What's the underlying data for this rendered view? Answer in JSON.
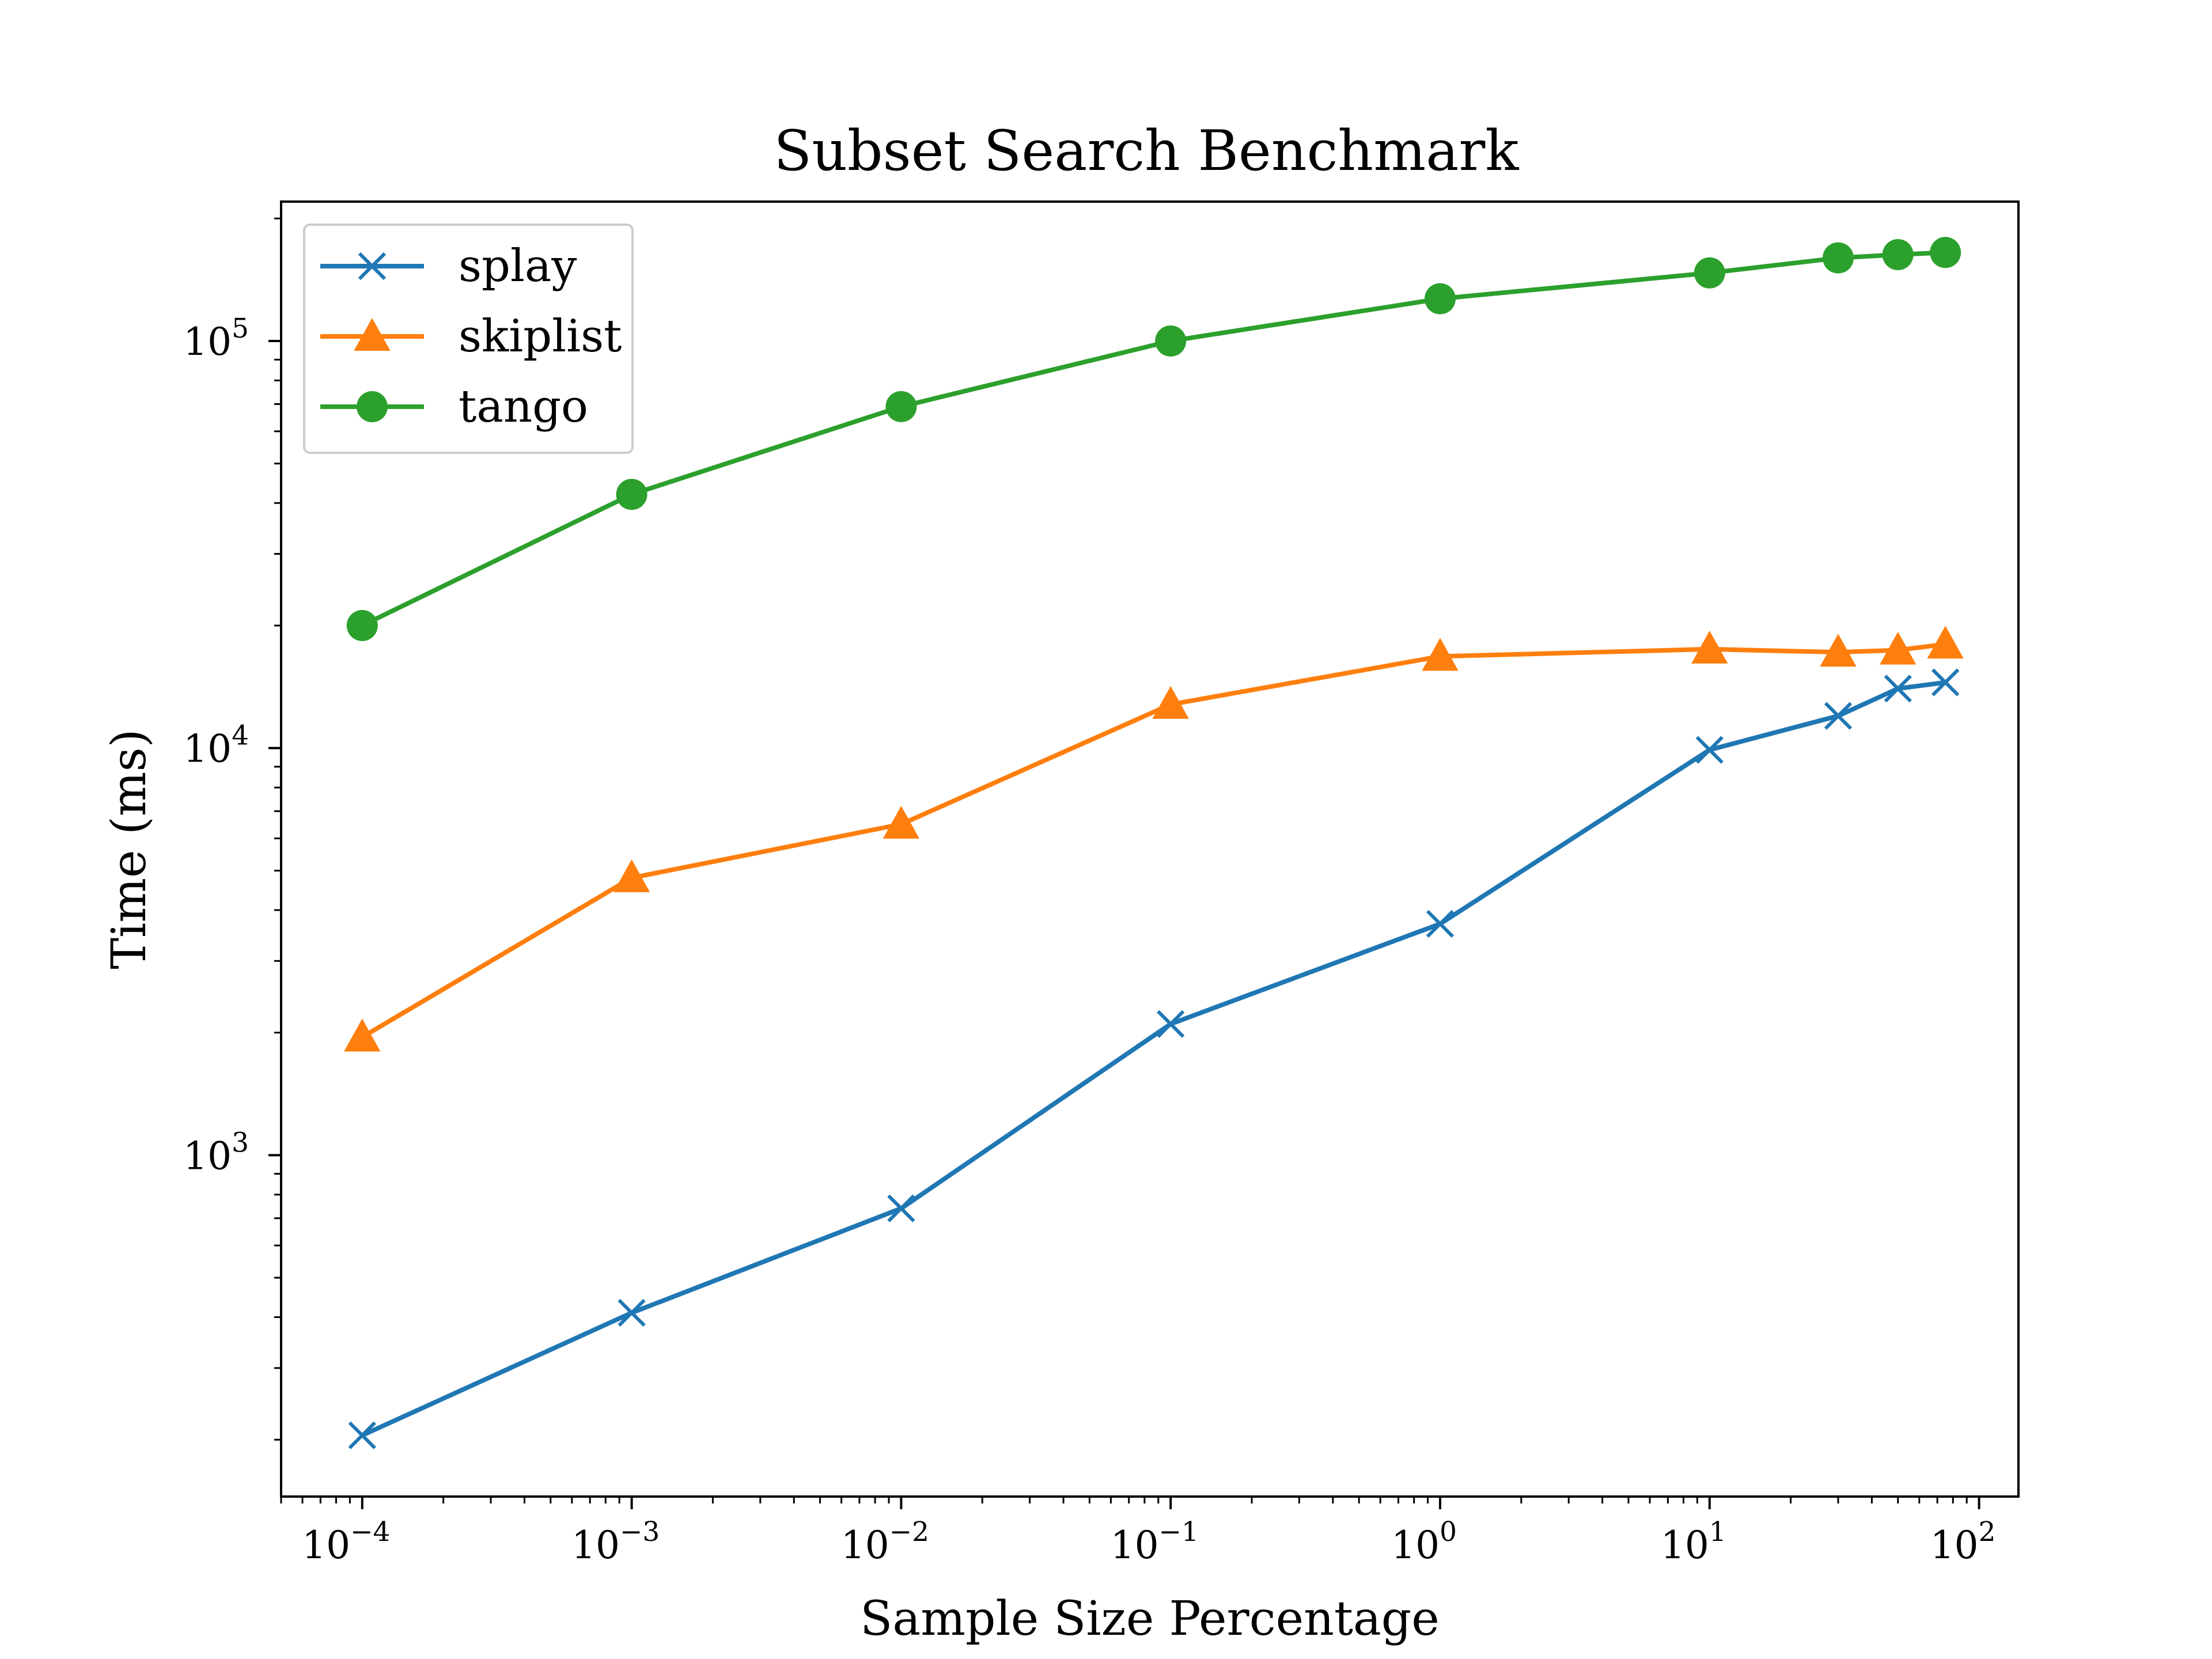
{
  "chart_data": {
    "type": "line",
    "title": "Subset Search Benchmark",
    "xlabel": "Sample Size Percentage",
    "ylabel": "Time (ms)",
    "x_scale": "log",
    "y_scale": "log",
    "xlim": [
      5e-05,
      140
    ],
    "ylim": [
      145,
      220000
    ],
    "x_ticks": [
      {
        "base": "10",
        "exp": "−4",
        "value": 0.0001
      },
      {
        "base": "10",
        "exp": "−3",
        "value": 0.001
      },
      {
        "base": "10",
        "exp": "−2",
        "value": 0.01
      },
      {
        "base": "10",
        "exp": "−1",
        "value": 0.1
      },
      {
        "base": "10",
        "exp": "0",
        "value": 1
      },
      {
        "base": "10",
        "exp": "1",
        "value": 10
      },
      {
        "base": "10",
        "exp": "2",
        "value": 100
      }
    ],
    "y_ticks": [
      {
        "base": "10",
        "exp": "3",
        "value": 1000
      },
      {
        "base": "10",
        "exp": "4",
        "value": 10000
      },
      {
        "base": "10",
        "exp": "5",
        "value": 100000
      }
    ],
    "grid": false,
    "legend_position": "top-left",
    "x": [
      0.0001,
      0.001,
      0.01,
      0.1,
      1,
      10,
      30,
      50,
      75
    ],
    "series": [
      {
        "name": "splay",
        "color": "#1f77b4",
        "marker": "x",
        "values": [
          205,
          410,
          740,
          2100,
          3700,
          9900,
          12000,
          14000,
          14500
        ]
      },
      {
        "name": "skiplist",
        "color": "#ff7f0e",
        "marker": "triangle",
        "values": [
          1950,
          4800,
          6500,
          12800,
          16800,
          17500,
          17200,
          17400,
          18000
        ]
      },
      {
        "name": "tango",
        "color": "#2ca02c",
        "marker": "circle",
        "values": [
          20000,
          42000,
          69000,
          100000,
          127000,
          147000,
          160000,
          163000,
          165000
        ]
      }
    ]
  }
}
